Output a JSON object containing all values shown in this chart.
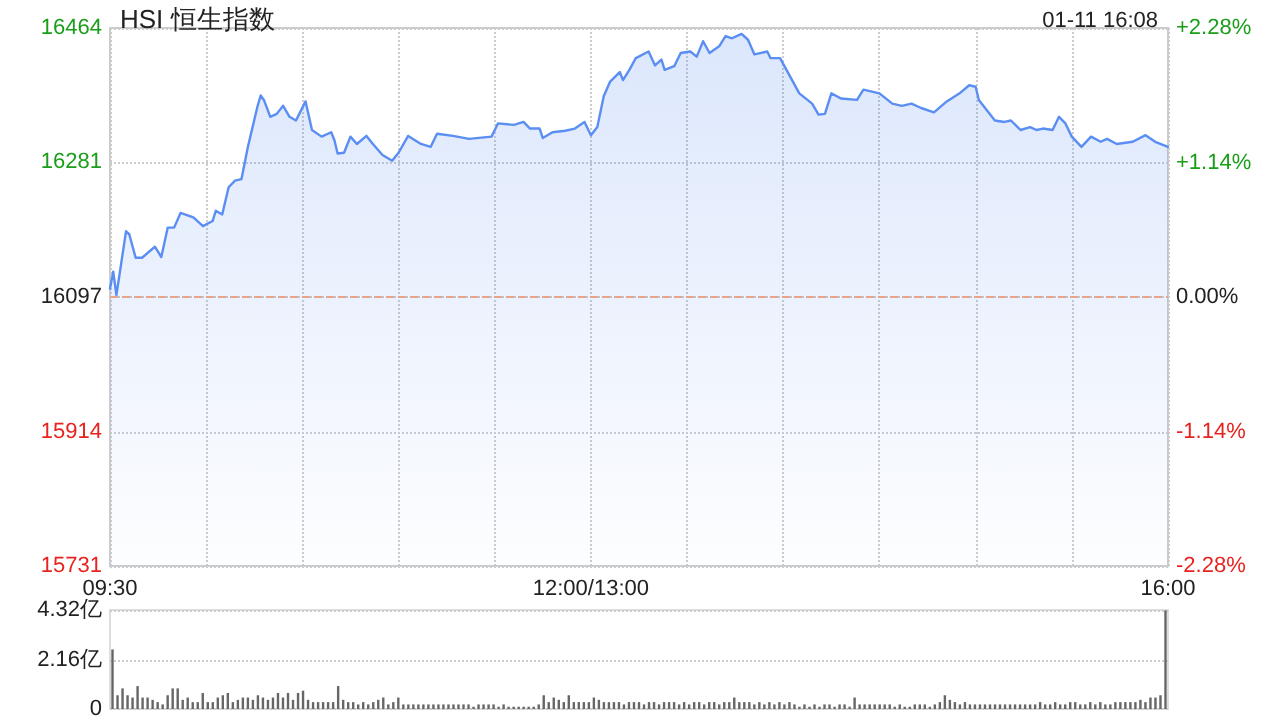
{
  "chart_data": [
    {
      "type": "area",
      "title": "HSI 恒生指数",
      "annotations": [
        "01-11 16:08"
      ],
      "categories": [
        "09:30",
        null,
        null,
        null,
        null,
        null,
        null,
        null,
        null,
        null,
        null,
        null,
        null,
        null,
        null,
        null,
        null,
        null,
        null,
        null,
        null,
        null,
        null,
        null,
        null,
        null,
        null,
        null,
        null,
        null,
        null,
        null,
        null,
        null,
        null,
        null,
        null,
        null,
        null,
        null,
        null,
        null,
        null,
        null,
        null,
        null,
        null,
        null,
        null,
        null,
        null,
        null,
        null,
        null,
        null,
        null,
        null,
        null,
        null,
        null,
        null,
        null,
        null,
        null,
        null,
        null,
        null,
        null,
        null,
        null,
        null,
        null,
        null,
        null,
        null,
        null,
        null,
        null,
        null,
        null,
        null,
        null,
        null,
        null,
        null,
        null,
        null,
        null,
        null,
        null,
        null,
        null,
        null,
        null,
        null,
        null,
        null,
        null,
        null,
        null,
        null,
        null,
        null,
        null,
        null,
        null,
        null,
        null,
        null,
        null,
        null,
        null,
        null,
        null,
        null,
        null,
        null,
        null,
        null,
        null,
        null,
        null,
        null,
        null,
        null,
        null,
        null,
        null,
        null,
        null,
        null,
        null,
        null,
        null,
        null,
        null,
        null,
        null,
        null,
        null,
        null,
        null,
        null,
        null,
        null,
        null,
        null,
        null,
        null,
        null,
        "12:00/13:00",
        null,
        null,
        null,
        null,
        null,
        null,
        null,
        null,
        null,
        null,
        null,
        null,
        null,
        null,
        null,
        null,
        null,
        null,
        null,
        null,
        null,
        null,
        null,
        null,
        null,
        null,
        null,
        null,
        null,
        null,
        null,
        null,
        null,
        null,
        null,
        null,
        null,
        null,
        null,
        null,
        null,
        null,
        null,
        null,
        null,
        null,
        null,
        null,
        null,
        null,
        null,
        null,
        null,
        null,
        null,
        null,
        null,
        null,
        null,
        null,
        null,
        null,
        null,
        null,
        null,
        null,
        null,
        null,
        null,
        null,
        null,
        null,
        null,
        null,
        null,
        null,
        null,
        null,
        null,
        null,
        null,
        null,
        null,
        null,
        null,
        null,
        null,
        null,
        null,
        null,
        null,
        null,
        null,
        null,
        null,
        null,
        null,
        null,
        null,
        null,
        null,
        null,
        null,
        null,
        null,
        null,
        null,
        null,
        null,
        null,
        null,
        null,
        null,
        null,
        null,
        null,
        null,
        null,
        null,
        null,
        null,
        null,
        null,
        null,
        null,
        null,
        null,
        null,
        null,
        null,
        null,
        null,
        null,
        null,
        null,
        null,
        null,
        null,
        null,
        null,
        null,
        null,
        null,
        null,
        null,
        null,
        null,
        null,
        null,
        null,
        null,
        null,
        null,
        null,
        null,
        null,
        null,
        null,
        null,
        null,
        null,
        null,
        null,
        null,
        null,
        null,
        null,
        null,
        null,
        null,
        null,
        null,
        null,
        null,
        null,
        null,
        null,
        null,
        null,
        "16:00"
      ],
      "ylim": [
        15731,
        16464
      ],
      "yticks": [
        15731,
        15914,
        16097,
        16281,
        16464
      ],
      "y2lim": [
        -2.28,
        2.28
      ],
      "y2ticks": [
        {
          "value": -2.28,
          "label": "-2.28%"
        },
        {
          "value": -1.14,
          "label": "-1.14%"
        },
        {
          "value": 0,
          "label": "0.00%"
        },
        {
          "value": 1.14,
          "label": "+1.14%"
        },
        {
          "value": 2.28,
          "label": "+2.28%"
        }
      ],
      "ref_lines": [
        {
          "axis": "y",
          "value": 16097,
          "color": "#e8a48a",
          "line_style": "dashed"
        }
      ],
      "grid": true,
      "marker": "none",
      "series": [
        {
          "color": "#5b8ef2",
          "values": [
            16109,
            16132,
            16100,
            null,
            null,
            16187,
            16183,
            null,
            16151,
            null,
            16151,
            null,
            null,
            null,
            16166,
            null,
            16152,
            null,
            16192,
            null,
            16192,
            null,
            16212,
            null,
            null,
            null,
            16206,
            null,
            null,
            16194,
            null,
            null,
            16201,
            16215,
            null,
            16210,
            null,
            16247,
            null,
            16256,
            null,
            16258,
            null,
            16302,
            null,
            null,
            16357,
            16372,
            16366,
            null,
            16343,
            null,
            16347,
            null,
            16358,
            null,
            16343,
            null,
            16338,
            null,
            null,
            16364,
            null,
            16325,
            null,
            null,
            16316,
            null,
            null,
            16322,
            16311,
            16293,
            null,
            16294,
            null,
            16316,
            null,
            16306,
            null,
            null,
            16317,
            null,
            16306,
            null,
            null,
            16291,
            null,
            null,
            16283,
            null,
            16294,
            null,
            null,
            16317,
            null,
            null,
            null,
            16306,
            null,
            null,
            16302,
            null,
            16320,
            null,
            null,
            null,
            null,
            16317,
            null,
            null,
            null,
            null,
            16313,
            null,
            null,
            null,
            null,
            null,
            null,
            16316,
            null,
            16334,
            null,
            null,
            null,
            null,
            16332,
            null,
            null,
            16336,
            null,
            16327,
            null,
            null,
            16327,
            16314,
            null,
            null,
            16322,
            null,
            null,
            null,
            16324,
            null,
            null,
            16327,
            null,
            null,
            16336,
            null,
            16318,
            null,
            16329,
            null,
            16371,
            null,
            16391,
            null,
            null,
            16404,
            16393,
            null,
            16407,
            null,
            16423,
            null,
            null,
            null,
            16432,
            null,
            16413,
            null,
            16421,
            16407,
            null,
            null,
            16412,
            null,
            16430,
            null,
            null,
            16432,
            null,
            16425,
            null,
            16446,
            null,
            16430,
            null,
            null,
            16439,
            null,
            16453,
            null,
            16450,
            null,
            null,
            16456,
            null,
            16448,
            null,
            16428,
            null,
            null,
            null,
            16432,
            16423,
            null,
            null,
            16423,
            null,
            16407,
            null,
            null,
            null,
            16375,
            null,
            null,
            null,
            16361,
            null,
            16346,
            null,
            16347,
            null,
            16375,
            null,
            null,
            16368,
            null,
            null,
            null,
            null,
            16366,
            null,
            16380,
            null,
            null,
            null,
            null,
            16375,
            null,
            null,
            null,
            16361,
            null,
            null,
            16358,
            null,
            null,
            16361,
            null,
            null,
            16355,
            null,
            null,
            null,
            16349,
            null,
            null,
            null,
            16364,
            null,
            null,
            null,
            16375,
            null,
            null,
            16386,
            null,
            16384,
            16366,
            null,
            null,
            null,
            null,
            16338,
            null,
            null,
            16336,
            null,
            16338,
            null,
            null,
            16325,
            null,
            null,
            16329,
            null,
            16325,
            null,
            16327,
            null,
            null,
            16325,
            null,
            16343,
            null,
            16334,
            null,
            16316,
            null,
            null,
            16302,
            null,
            null,
            16316,
            null,
            null,
            16309,
            null,
            16313,
            null,
            null,
            16306,
            null,
            null,
            null,
            null,
            16309,
            null,
            null,
            null,
            16318,
            null,
            null,
            16309,
            null,
            null,
            null,
            16302
          ]
        }
      ]
    },
    {
      "type": "bar",
      "tick_labels": "y",
      "grid": "y",
      "ylim": [
        0,
        4.32
      ],
      "yticks": [
        0,
        {
          "value": 2.16,
          "label": "2.16亿"
        },
        {
          "value": 4.32,
          "label": "4.32亿"
        }
      ],
      "categories": [
        null,
        null,
        null,
        null,
        null,
        null,
        null,
        null,
        null,
        null,
        null,
        null,
        null,
        null,
        null,
        null,
        null,
        null,
        null,
        null,
        null,
        null,
        null,
        null,
        null,
        null,
        null,
        null,
        null,
        null,
        null,
        null,
        null,
        null,
        null,
        null,
        null,
        null,
        null,
        null,
        null,
        null,
        null,
        null,
        null,
        null,
        null,
        null,
        null,
        null,
        null,
        null,
        null,
        null,
        null,
        null,
        null,
        null,
        null,
        null,
        null,
        null,
        null,
        null,
        null,
        null,
        null,
        null,
        null,
        null,
        null,
        null,
        null,
        null,
        null,
        null,
        null,
        null,
        null,
        null,
        null,
        null,
        null,
        null,
        null,
        null,
        null,
        null,
        null,
        null,
        null,
        null,
        null,
        null,
        null,
        null,
        null,
        null,
        null,
        null,
        null,
        null,
        null,
        null,
        null,
        null,
        null,
        null,
        null,
        null,
        null,
        null,
        null,
        null,
        null,
        null,
        null,
        null,
        null,
        null,
        null,
        null,
        null,
        null,
        null,
        null,
        null,
        null,
        null,
        null,
        null,
        null,
        null,
        null,
        null,
        null,
        null,
        null,
        null,
        null,
        null,
        null,
        null,
        null,
        null,
        null,
        null,
        null,
        null,
        null,
        null,
        null,
        null,
        null,
        null,
        null,
        null,
        null,
        null,
        null,
        null,
        null,
        null,
        null,
        null,
        null,
        null,
        null,
        null,
        null,
        null,
        null,
        null,
        null,
        null,
        null,
        null,
        null,
        null,
        null,
        null,
        null,
        null,
        null,
        null,
        null,
        null,
        null,
        null,
        null,
        null,
        null,
        null,
        null,
        null,
        null,
        null,
        null,
        null,
        null,
        null,
        null,
        null,
        null,
        null,
        null,
        null,
        null,
        null,
        null,
        null
      ],
      "series": [
        {
          "color": "#666666",
          "values": [
            2.6,
            0.6,
            0.9,
            0.6,
            0.5,
            1.0,
            0.5,
            0.5,
            0.4,
            0.3,
            0.2,
            0.6,
            0.9,
            0.9,
            0.4,
            0.5,
            0.3,
            0.3,
            0.7,
            0.3,
            0.3,
            0.5,
            0.6,
            0.7,
            0.3,
            0.4,
            0.5,
            0.5,
            0.4,
            0.6,
            0.5,
            0.4,
            0.5,
            0.7,
            0.5,
            0.7,
            0.4,
            0.7,
            0.8,
            0.4,
            0.3,
            0.3,
            0.3,
            0.3,
            0.3,
            1.0,
            0.4,
            0.3,
            0.3,
            0.2,
            0.3,
            0.2,
            0.3,
            0.4,
            0.5,
            0.2,
            0.3,
            0.5,
            0.2,
            0.2,
            0.2,
            0.2,
            0.2,
            0.2,
            0.2,
            0.2,
            0.2,
            0.2,
            0.2,
            0.2,
            0.2,
            0.2,
            0.1,
            0.2,
            0.2,
            0.2,
            0.2,
            0.1,
            0.2,
            0.1,
            0.1,
            0.1,
            0.1,
            0.1,
            0.1,
            0.2,
            0.6,
            0.3,
            0.5,
            0.4,
            0.3,
            0.6,
            0.3,
            0.3,
            0.3,
            0.3,
            0.5,
            0.4,
            0.3,
            0.3,
            0.3,
            0.3,
            0.2,
            0.3,
            0.3,
            0.3,
            0.2,
            0.3,
            0.3,
            0.2,
            0.3,
            0.3,
            0.3,
            0.2,
            0.3,
            0.2,
            0.3,
            0.3,
            0.2,
            0.3,
            0.3,
            0.2,
            0.3,
            0.3,
            0.5,
            0.3,
            0.3,
            0.3,
            0.2,
            0.3,
            0.2,
            0.3,
            0.2,
            0.3,
            0.2,
            0.3,
            0.2,
            0.1,
            0.2,
            0.1,
            0.2,
            0.1,
            0.2,
            0.2,
            0.1,
            0.2,
            0.2,
            0.1,
            0.5,
            0.2,
            0.2,
            0.2,
            0.2,
            0.2,
            0.2,
            0.2,
            0.1,
            0.2,
            0.1,
            0.1,
            0.2,
            0.2,
            0.2,
            0.1,
            0.2,
            0.3,
            0.6,
            0.4,
            0.3,
            0.2,
            0.3,
            0.2,
            0.2,
            0.2,
            0.2,
            0.2,
            0.2,
            0.2,
            0.2,
            0.2,
            0.2,
            0.2,
            0.2,
            0.2,
            0.2,
            0.3,
            0.2,
            0.2,
            0.3,
            0.2,
            0.2,
            0.3,
            0.3,
            0.2,
            0.2,
            0.3,
            0.2,
            0.3,
            0.2,
            0.2,
            0.3,
            0.3,
            0.3,
            0.3,
            0.3,
            0.4,
            0.3,
            0.5,
            0.5,
            0.6,
            4.3
          ]
        }
      ]
    }
  ]
}
